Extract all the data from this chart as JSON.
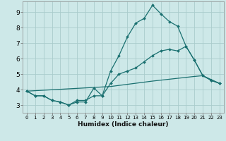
{
  "xlabel": "Humidex (Indice chaleur)",
  "background_color": "#cde8e8",
  "grid_color": "#aacccc",
  "line_color": "#1a7070",
  "xlim": [
    -0.5,
    23.5
  ],
  "ylim": [
    2.5,
    9.7
  ],
  "xticks": [
    0,
    1,
    2,
    3,
    4,
    5,
    6,
    7,
    8,
    9,
    10,
    11,
    12,
    13,
    14,
    15,
    16,
    17,
    18,
    19,
    20,
    21,
    22,
    23
  ],
  "yticks": [
    3,
    4,
    5,
    6,
    7,
    8,
    9
  ],
  "line1_x": [
    0,
    1,
    2,
    3,
    4,
    5,
    6,
    7,
    8,
    9,
    10,
    11,
    12,
    13,
    14,
    15,
    16,
    17,
    18,
    19,
    20,
    21,
    22,
    23
  ],
  "line1_y": [
    3.9,
    3.6,
    3.6,
    3.3,
    3.2,
    3.0,
    3.2,
    3.2,
    4.1,
    3.6,
    5.2,
    6.2,
    7.4,
    8.3,
    8.6,
    9.45,
    8.9,
    8.4,
    8.1,
    6.8,
    5.9,
    4.9,
    4.6,
    4.4
  ],
  "line2_x": [
    0,
    1,
    2,
    3,
    4,
    5,
    6,
    7,
    8,
    9,
    10,
    11,
    12,
    13,
    14,
    15,
    16,
    17,
    18,
    19,
    20,
    21,
    22,
    23
  ],
  "line2_y": [
    3.9,
    3.6,
    3.6,
    3.3,
    3.2,
    3.0,
    3.3,
    3.3,
    3.6,
    3.6,
    4.4,
    5.0,
    5.2,
    5.4,
    5.8,
    6.2,
    6.5,
    6.6,
    6.5,
    6.8,
    5.9,
    4.9,
    4.6,
    4.4
  ],
  "line3_x": [
    0,
    10,
    15,
    20,
    21,
    22,
    23
  ],
  "line3_y": [
    3.9,
    4.2,
    4.55,
    4.85,
    4.9,
    4.65,
    4.4
  ]
}
